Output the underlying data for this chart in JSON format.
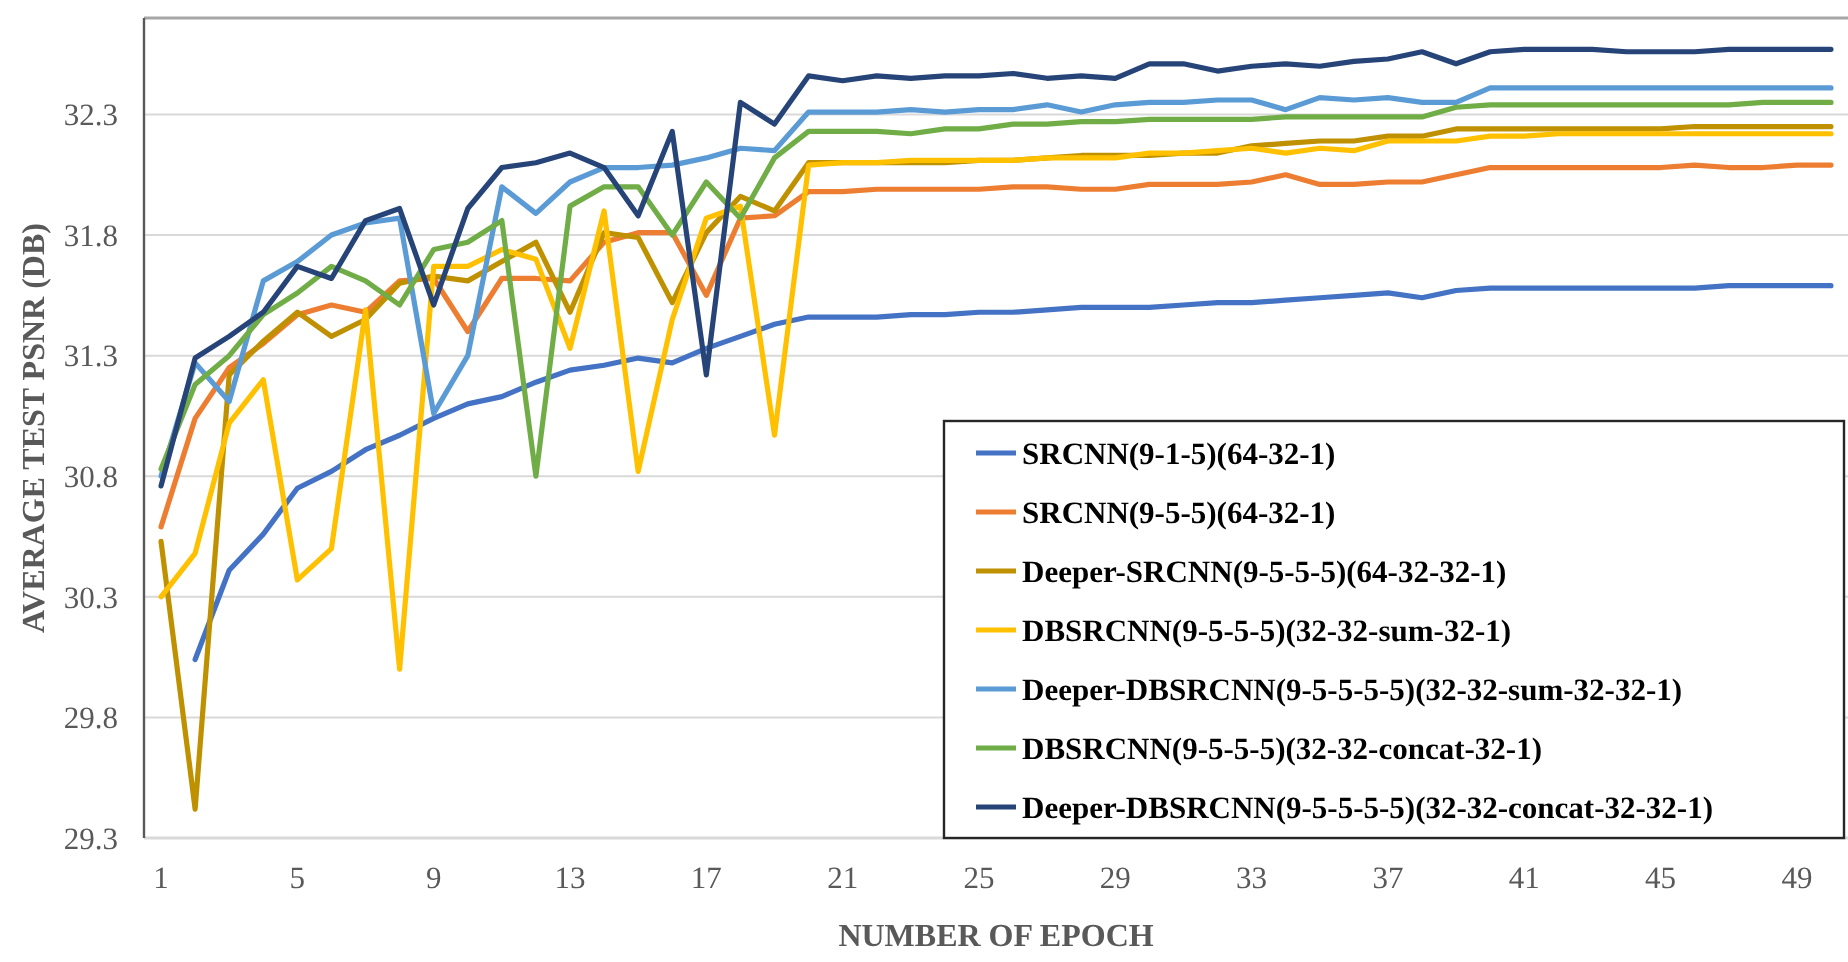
{
  "chart_data": {
    "type": "line",
    "xlabel": "NUMBER OF EPOCH",
    "ylabel": "AVERAGE TEST PSNR (DB)",
    "categories": [
      "1",
      null,
      null,
      null,
      "5",
      null,
      null,
      null,
      "9",
      null,
      null,
      null,
      "13",
      null,
      null,
      null,
      "17",
      null,
      null,
      null,
      "21",
      null,
      null,
      null,
      "25",
      null,
      null,
      null,
      "29",
      null,
      null,
      null,
      "33",
      null,
      null,
      null,
      "37",
      null,
      null,
      null,
      "41",
      null,
      null,
      null,
      "45",
      null,
      null,
      null,
      "49",
      null
    ],
    "ylim": [
      29.3,
      32.7
    ],
    "yticks": [
      29.3,
      29.8,
      30.3,
      30.8,
      31.3,
      31.8,
      32.3
    ],
    "grid": "y",
    "legend": "bottom right",
    "line_style": "solid",
    "marker": "none",
    "series": [
      {
        "name": "SRCNN(9-1-5)(64-32-1)",
        "color": "#4472c4",
        "values": [
          null,
          30.04,
          30.41,
          30.56,
          30.75,
          30.82,
          30.91,
          30.97,
          31.04,
          31.1,
          31.13,
          31.19,
          31.24,
          31.26,
          31.29,
          31.27,
          31.33,
          31.38,
          31.43,
          31.46,
          31.46,
          31.46,
          31.47,
          31.47,
          31.48,
          31.48,
          31.49,
          31.5,
          31.5,
          31.5,
          31.51,
          31.52,
          31.52,
          31.53,
          31.54,
          31.55,
          31.56,
          31.54,
          31.57,
          31.58,
          31.58,
          31.58,
          31.58,
          31.58,
          31.58,
          31.58,
          31.59,
          31.59,
          31.59,
          31.59
        ]
      },
      {
        "name": "SRCNN(9-5-5)(64-32-1)",
        "color": "#ed7d31",
        "values": [
          30.59,
          31.04,
          31.25,
          31.35,
          31.47,
          31.51,
          31.48,
          31.61,
          31.62,
          31.4,
          31.62,
          31.62,
          31.61,
          31.77,
          31.81,
          31.81,
          31.55,
          31.87,
          31.88,
          31.98,
          31.98,
          31.99,
          31.99,
          31.99,
          31.99,
          32.0,
          32.0,
          31.99,
          31.99,
          32.01,
          32.01,
          32.01,
          32.02,
          32.05,
          32.01,
          32.01,
          32.02,
          32.02,
          32.05,
          32.08,
          32.08,
          32.08,
          32.08,
          32.08,
          32.08,
          32.09,
          32.08,
          32.08,
          32.09,
          32.09
        ]
      },
      {
        "name": "Deeper-SRCNN(9-5-5-5)(64-32-32-1)",
        "color": "#bf9000",
        "values": [
          30.53,
          29.42,
          31.22,
          31.36,
          31.48,
          31.38,
          31.45,
          31.6,
          31.63,
          31.61,
          31.69,
          31.77,
          31.48,
          31.81,
          31.79,
          31.52,
          31.81,
          31.96,
          31.9,
          32.1,
          32.1,
          32.1,
          32.1,
          32.1,
          32.11,
          32.11,
          32.12,
          32.13,
          32.13,
          32.13,
          32.14,
          32.14,
          32.17,
          32.18,
          32.19,
          32.19,
          32.21,
          32.21,
          32.24,
          32.24,
          32.24,
          32.24,
          32.24,
          32.24,
          32.24,
          32.25,
          32.25,
          32.25,
          32.25,
          32.25
        ]
      },
      {
        "name": "DBSRCNN(9-5-5-5)(32-32-sum-32-1)",
        "color": "#ffc000",
        "values": [
          30.3,
          30.48,
          31.02,
          31.2,
          30.37,
          30.5,
          31.49,
          30.0,
          31.67,
          31.67,
          31.74,
          31.7,
          31.33,
          31.9,
          30.82,
          31.45,
          31.87,
          31.92,
          30.97,
          32.09,
          32.1,
          32.1,
          32.11,
          32.11,
          32.11,
          32.11,
          32.12,
          32.12,
          32.12,
          32.14,
          32.14,
          32.15,
          32.16,
          32.14,
          32.16,
          32.15,
          32.19,
          32.19,
          32.19,
          32.21,
          32.21,
          32.22,
          32.22,
          32.22,
          32.22,
          32.22,
          32.22,
          32.22,
          32.22,
          32.22
        ]
      },
      {
        "name": "Deeper-DBSRCNN(9-5-5-5-5)(32-32-sum-32-32-1)",
        "color": "#5b9bd5",
        "values": [
          30.8,
          31.27,
          31.11,
          31.61,
          31.69,
          31.8,
          31.85,
          31.87,
          31.06,
          31.3,
          32.0,
          31.89,
          32.02,
          32.08,
          32.08,
          32.09,
          32.12,
          32.16,
          32.15,
          32.31,
          32.31,
          32.31,
          32.32,
          32.31,
          32.32,
          32.32,
          32.34,
          32.31,
          32.34,
          32.35,
          32.35,
          32.36,
          32.36,
          32.32,
          32.37,
          32.36,
          32.37,
          32.35,
          32.35,
          32.41,
          32.41,
          32.41,
          32.41,
          32.41,
          32.41,
          32.41,
          32.41,
          32.41,
          32.41,
          32.41
        ]
      },
      {
        "name": "DBSRCNN(9-5-5-5)(32-32-concat-32-1)",
        "color": "#70ad47",
        "values": [
          30.83,
          31.18,
          31.3,
          31.47,
          31.56,
          31.67,
          31.61,
          31.51,
          31.74,
          31.77,
          31.86,
          30.8,
          31.92,
          32.0,
          32.0,
          31.8,
          32.02,
          31.87,
          32.12,
          32.23,
          32.23,
          32.23,
          32.22,
          32.24,
          32.24,
          32.26,
          32.26,
          32.27,
          32.27,
          32.28,
          32.28,
          32.28,
          32.28,
          32.29,
          32.29,
          32.29,
          32.29,
          32.29,
          32.33,
          32.34,
          32.34,
          32.34,
          32.34,
          32.34,
          32.34,
          32.34,
          32.34,
          32.35,
          32.35,
          32.35
        ]
      },
      {
        "name": "Deeper-DBSRCNN(9-5-5-5-5)(32-32-concat-32-32-1)",
        "color": "#264478",
        "values": [
          30.76,
          31.29,
          31.38,
          31.48,
          31.67,
          31.62,
          31.86,
          31.91,
          31.51,
          31.91,
          32.08,
          32.1,
          32.14,
          32.08,
          31.88,
          32.23,
          31.22,
          32.35,
          32.26,
          32.46,
          32.44,
          32.46,
          32.45,
          32.46,
          32.46,
          32.47,
          32.45,
          32.46,
          32.45,
          32.51,
          32.51,
          32.48,
          32.5,
          32.51,
          32.5,
          32.52,
          32.53,
          32.56,
          32.51,
          32.56,
          32.57,
          32.57,
          32.57,
          32.56,
          32.56,
          32.56,
          32.57,
          32.57,
          32.57,
          32.57
        ]
      }
    ]
  }
}
